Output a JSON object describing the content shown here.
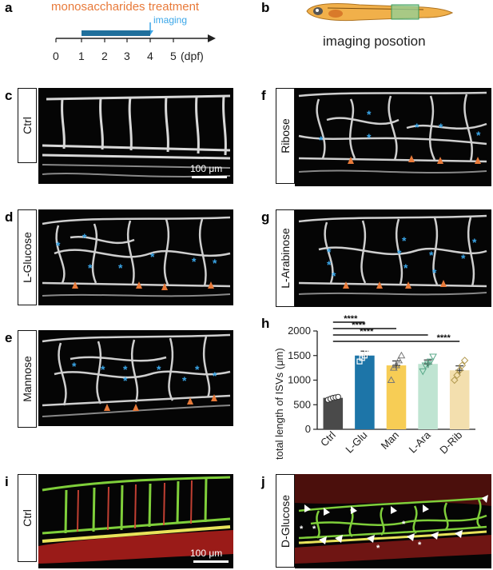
{
  "panels": {
    "a": {
      "letter": "a",
      "treatment": "monosaccharides treatment",
      "imaging": "imaging",
      "ticks": [
        "0",
        "1",
        "2",
        "3",
        "4",
        "5"
      ],
      "unit": "(dpf)"
    },
    "b": {
      "letter": "b",
      "caption": "imaging posotion"
    },
    "c": {
      "letter": "c",
      "label": "Ctrl",
      "scale": "100 μm"
    },
    "d": {
      "letter": "d",
      "label": "L-Glucose"
    },
    "e": {
      "letter": "e",
      "label": "Mannose"
    },
    "f": {
      "letter": "f",
      "label": "Ribose"
    },
    "g": {
      "letter": "g",
      "label": "L-Arabinose"
    },
    "h": {
      "letter": "h"
    },
    "i": {
      "letter": "i",
      "label": "Ctrl",
      "scale": "100 μm"
    },
    "j": {
      "letter": "j",
      "label": "D-Glucose"
    }
  },
  "colors": {
    "accent_orange": "#e87a3a",
    "accent_blue": "#3aa6e8",
    "bar_blue": "#1f6f9c"
  },
  "chart_data": {
    "type": "bar",
    "ylabel": "total length of ISVs (μm)",
    "ylim": [
      0,
      2000
    ],
    "yticks": [
      0,
      500,
      1000,
      1500,
      2000
    ],
    "categories": [
      "Ctrl",
      "L-Glu",
      "Man",
      "L-Ara",
      "D-Rib"
    ],
    "values": [
      640,
      1500,
      1300,
      1330,
      1200
    ],
    "errors": [
      25,
      90,
      90,
      80,
      90
    ],
    "colors": [
      "#4a4a4a",
      "#1d75a8",
      "#f7cd55",
      "#bfe4d2",
      "#f3dfae"
    ],
    "markers": [
      "circle",
      "square",
      "triangle",
      "inverted-triangle",
      "diamond"
    ],
    "points": [
      [
        600,
        620,
        640,
        650,
        660
      ],
      [
        1380,
        1450,
        1500,
        1560,
        1620
      ],
      [
        1000,
        1250,
        1300,
        1400,
        1500
      ],
      [
        1180,
        1300,
        1330,
        1380,
        1480
      ],
      [
        1000,
        1100,
        1200,
        1300,
        1400
      ]
    ],
    "significance": "****",
    "comparisons": [
      [
        0,
        1
      ],
      [
        0,
        2
      ],
      [
        0,
        3
      ],
      [
        0,
        4
      ]
    ]
  }
}
